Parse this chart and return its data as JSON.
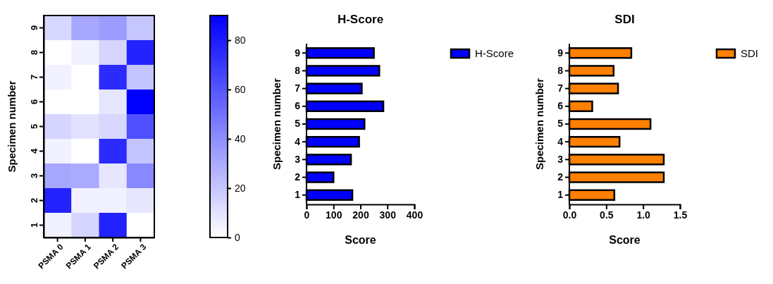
{
  "chart_data": [
    {
      "type": "heatmap",
      "ylabel": "Specimen number",
      "categories": [
        "PSMA 0",
        "PSMA 1",
        "PSMA 2",
        "PSMA 3"
      ],
      "y_categories": [
        "9",
        "8",
        "7",
        "6",
        "5",
        "4",
        "3",
        "2",
        "1"
      ],
      "cells": [
        [
          14,
          31,
          35,
          20
        ],
        [
          0,
          5,
          15,
          78
        ],
        [
          5,
          0,
          75,
          21
        ],
        [
          0,
          0,
          9,
          90
        ],
        [
          15,
          10,
          14,
          62
        ],
        [
          5,
          0,
          75,
          21
        ],
        [
          31,
          30,
          9,
          42
        ],
        [
          78,
          5,
          5,
          9
        ],
        [
          5,
          15,
          78,
          0
        ]
      ],
      "clim": [
        0,
        90
      ],
      "cticks": [
        0,
        20,
        40,
        60,
        80
      ]
    },
    {
      "type": "bar",
      "orientation": "horizontal",
      "title": "H-Score",
      "xlabel": "Score",
      "ylabel": "Specimen number",
      "categories": [
        "9",
        "8",
        "7",
        "6",
        "5",
        "4",
        "3",
        "2",
        "1"
      ],
      "series": [
        {
          "name": "H-Score",
          "color": "#0000ff",
          "values": [
            250,
            270,
            205,
            285,
            215,
            195,
            165,
            100,
            170
          ]
        }
      ],
      "xlim": [
        0,
        400
      ],
      "xticks": [
        0,
        100,
        200,
        300,
        400
      ],
      "legend": "top right"
    },
    {
      "type": "bar",
      "orientation": "horizontal",
      "title": "SDI",
      "xlabel": "Score",
      "ylabel": "Specimen number",
      "categories": [
        "9",
        "8",
        "7",
        "6",
        "5",
        "4",
        "3",
        "2",
        "1"
      ],
      "series": [
        {
          "name": "SDI",
          "color": "#ff7f00",
          "values": [
            0.84,
            0.6,
            0.66,
            0.31,
            1.1,
            0.68,
            1.28,
            1.28,
            0.61
          ]
        }
      ],
      "xlim": [
        0,
        1.5
      ],
      "xticks": [
        {
          "value": 0,
          "label": "0.0"
        },
        {
          "value": 0.5,
          "label": "0.5"
        },
        {
          "value": 1,
          "label": "1.0"
        },
        {
          "value": 1.5,
          "label": "1.5"
        }
      ],
      "legend": "top right"
    }
  ]
}
